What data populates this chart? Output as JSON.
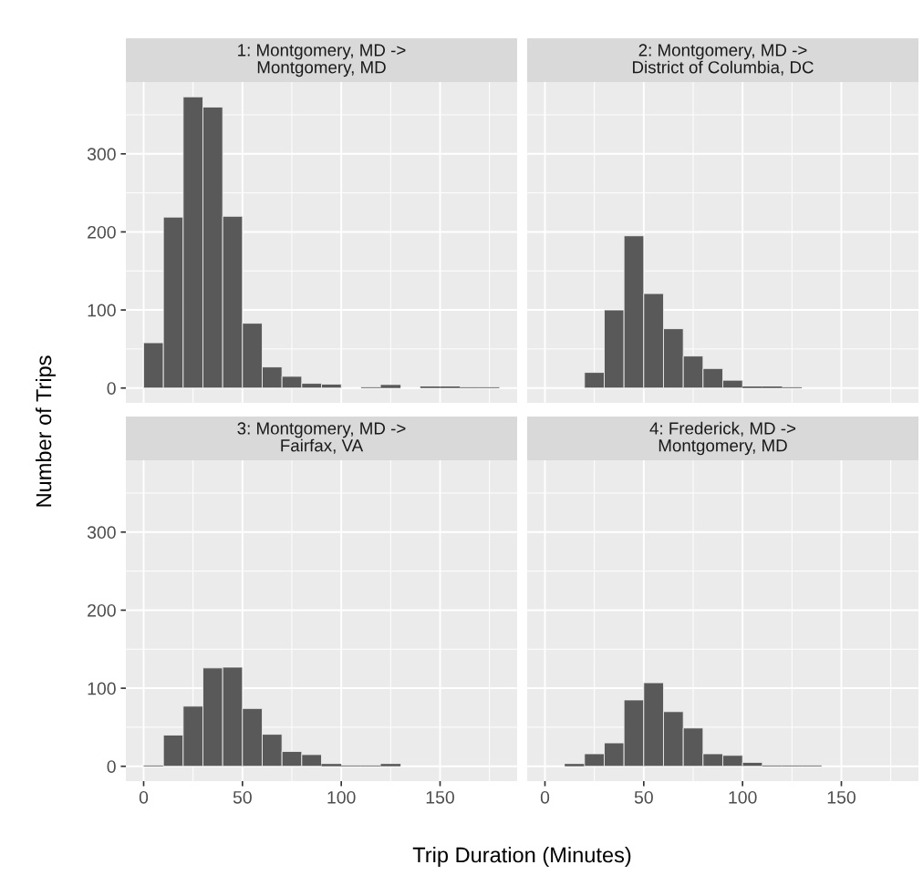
{
  "chart_data": [
    {
      "type": "histogram",
      "title": "1: Montgomery, MD ->\nMontgomery, MD",
      "ylabel": "Number of Trips",
      "bins": [
        0,
        10,
        20,
        30,
        40,
        50,
        60,
        70,
        80,
        90,
        100,
        110,
        120,
        130,
        140,
        150,
        160,
        170,
        180
      ],
      "values": [
        58,
        219,
        373,
        360,
        220,
        83,
        27,
        15,
        6,
        5,
        0,
        1,
        4,
        0,
        2,
        2,
        1,
        1
      ],
      "color": "#595959",
      "xlim": [
        -9,
        189
      ],
      "ylim": [
        -19,
        392
      ],
      "xticks": [
        0,
        50,
        100,
        150
      ],
      "yticks": [
        0,
        100,
        200,
        300
      ],
      "grid": true,
      "tick_labels": "y"
    },
    {
      "type": "histogram",
      "title": "2: Montgomery, MD ->\nDistrict of Columbia, DC",
      "bins": [
        20,
        30,
        40,
        50,
        60,
        70,
        80,
        90,
        100,
        110,
        120,
        130
      ],
      "values": [
        20,
        100,
        195,
        121,
        76,
        41,
        25,
        10,
        2,
        2,
        1
      ],
      "color": "#595959",
      "xlim": [
        -9,
        189
      ],
      "ylim": [
        -19,
        392
      ],
      "xticks": [
        0,
        50,
        100,
        150
      ],
      "yticks": [
        0,
        100,
        200,
        300
      ],
      "grid": true,
      "tick_labels": false
    },
    {
      "type": "histogram",
      "title": "3: Montgomery, MD ->\nFairfax, VA",
      "xlabel": "Trip Duration (Minutes)",
      "bins": [
        0,
        10,
        20,
        30,
        40,
        50,
        60,
        70,
        80,
        90,
        100,
        110,
        120,
        130
      ],
      "values": [
        1,
        40,
        77,
        126,
        127,
        74,
        41,
        19,
        15,
        3,
        1,
        1,
        3
      ],
      "color": "#595959",
      "xlim": [
        -9,
        189
      ],
      "ylim": [
        -19,
        392
      ],
      "xticks": [
        0,
        50,
        100,
        150
      ],
      "yticks": [
        0,
        100,
        200,
        300
      ],
      "grid": true
    },
    {
      "type": "histogram",
      "title": "4: Frederick, MD ->\nMontgomery, MD",
      "bins": [
        10,
        20,
        30,
        40,
        50,
        60,
        70,
        80,
        90,
        100,
        110,
        120,
        130,
        140
      ],
      "values": [
        3,
        16,
        30,
        85,
        107,
        70,
        49,
        16,
        14,
        5,
        1,
        1,
        1
      ],
      "color": "#595959",
      "xlim": [
        -9,
        189
      ],
      "ylim": [
        -19,
        392
      ],
      "xticks": [
        0,
        50,
        100,
        150
      ],
      "yticks": [
        0,
        100,
        200,
        300
      ],
      "grid": true,
      "tick_labels": "x"
    }
  ]
}
